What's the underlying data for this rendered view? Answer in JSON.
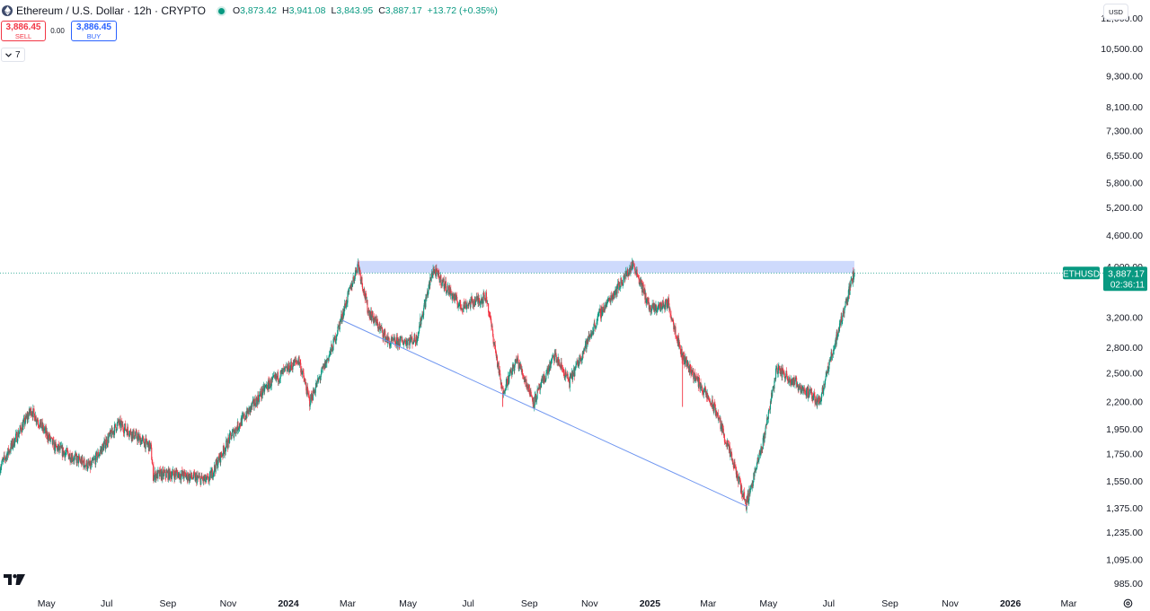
{
  "header": {
    "symbol_title": "Ethereum / U.S. Dollar · 12h · CRYPTO",
    "open_key": "O",
    "open": "3,873.42",
    "high_key": "H",
    "high": "3,941.08",
    "low_key": "L",
    "low": "3,843.95",
    "close_key": "C",
    "close": "3,887.17",
    "change": "+13.72 (+0.35%)"
  },
  "trade": {
    "sell_price": "3,886.45",
    "sell_label": "SELL",
    "spread": "0.00",
    "buy_price": "3,886.45",
    "buy_label": "BUY"
  },
  "indicators": {
    "toggle_label": "7"
  },
  "currency_label": "USD",
  "colors": {
    "up": "#089981",
    "down": "#f23645",
    "accent": "#2962ff",
    "box_fill": "#c6d3fb",
    "trendline": "#6e95f0"
  },
  "icons": {
    "symbol": "ethereum-icon",
    "logo": "tradingview-logo-icon",
    "settings": "settings-icon",
    "chevron": "chevron-down-icon"
  },
  "chart_data": {
    "type": "candlestick",
    "interval": "12h",
    "y_scale": "log",
    "ylim": [
      940,
      13000
    ],
    "x_start": "2023-03-15",
    "x_end": "2026-04-05",
    "price_ticks": [
      "12,000.00",
      "10,500.00",
      "9,300.00",
      "8,100.00",
      "7,300.00",
      "6,550.00",
      "5,800.00",
      "5,200.00",
      "4,600.00",
      "4,000.00",
      "3,200.00",
      "2,800.00",
      "2,500.00",
      "2,200.00",
      "1,950.00",
      "1,750.00",
      "1,550.00",
      "1,375.00",
      "1,235.00",
      "1,095.00",
      "985.00"
    ],
    "time_ticks": [
      {
        "label": "Mar",
        "date": "2023-03-01",
        "bold": false
      },
      {
        "label": "May",
        "date": "2023-05-01",
        "bold": false
      },
      {
        "label": "Jul",
        "date": "2023-07-01",
        "bold": false
      },
      {
        "label": "Sep",
        "date": "2023-09-01",
        "bold": false
      },
      {
        "label": "Nov",
        "date": "2023-11-01",
        "bold": false
      },
      {
        "label": "2024",
        "date": "2024-01-01",
        "bold": true
      },
      {
        "label": "Mar",
        "date": "2024-03-01",
        "bold": false
      },
      {
        "label": "May",
        "date": "2024-05-01",
        "bold": false
      },
      {
        "label": "Jul",
        "date": "2024-07-01",
        "bold": false
      },
      {
        "label": "Sep",
        "date": "2024-09-01",
        "bold": false
      },
      {
        "label": "Nov",
        "date": "2024-11-01",
        "bold": false
      },
      {
        "label": "2025",
        "date": "2025-01-01",
        "bold": true
      },
      {
        "label": "Mar",
        "date": "2025-03-01",
        "bold": false
      },
      {
        "label": "May",
        "date": "2025-05-01",
        "bold": false
      },
      {
        "label": "Jul",
        "date": "2025-07-01",
        "bold": false
      },
      {
        "label": "Sep",
        "date": "2025-09-01",
        "bold": false
      },
      {
        "label": "Nov",
        "date": "2025-11-01",
        "bold": false
      },
      {
        "label": "2026",
        "date": "2026-01-01",
        "bold": true
      },
      {
        "label": "Mar",
        "date": "2026-03-01",
        "bold": false
      }
    ],
    "price_path": [
      [
        "2023-03-15",
        1640
      ],
      [
        "2023-04-16",
        2120
      ],
      [
        "2023-05-10",
        1800
      ],
      [
        "2023-06-15",
        1650
      ],
      [
        "2023-07-13",
        2000
      ],
      [
        "2023-08-15",
        1800
      ],
      [
        "2023-08-18",
        1590
      ],
      [
        "2023-09-10",
        1600
      ],
      [
        "2023-10-12",
        1550
      ],
      [
        "2023-11-05",
        1900
      ],
      [
        "2023-12-10",
        2350
      ],
      [
        "2024-01-12",
        2650
      ],
      [
        "2024-01-23",
        2200
      ],
      [
        "2024-02-15",
        2800
      ],
      [
        "2024-03-12",
        4050
      ],
      [
        "2024-03-22",
        3300
      ],
      [
        "2024-04-13",
        2850
      ],
      [
        "2024-05-10",
        2900
      ],
      [
        "2024-05-27",
        3950
      ],
      [
        "2024-06-24",
        3350
      ],
      [
        "2024-07-20",
        3500
      ],
      [
        "2024-08-05",
        2300
      ],
      [
        "2024-08-20",
        2650
      ],
      [
        "2024-09-06",
        2200
      ],
      [
        "2024-09-27",
        2700
      ],
      [
        "2024-10-12",
        2400
      ],
      [
        "2024-11-12",
        3250
      ],
      [
        "2024-12-16",
        4050
      ],
      [
        "2025-01-02",
        3300
      ],
      [
        "2025-01-20",
        3400
      ],
      [
        "2025-02-03",
        2700
      ],
      [
        "2025-03-10",
        2100
      ],
      [
        "2025-04-09",
        1400
      ],
      [
        "2025-04-25",
        1800
      ],
      [
        "2025-05-10",
        2550
      ],
      [
        "2025-06-22",
        2200
      ],
      [
        "2025-07-10",
        2950
      ],
      [
        "2025-07-27",
        3887
      ]
    ],
    "spikes": [
      {
        "date": "2023-08-17",
        "low": 1550
      },
      {
        "date": "2024-08-05",
        "low": 2150
      },
      {
        "date": "2025-02-03",
        "low": 2150
      },
      {
        "date": "2025-04-09",
        "low": 1385
      }
    ],
    "resistance_zone": {
      "start": "2024-03-10",
      "end": "2025-07-27",
      "low": 3887,
      "high": 4100
    },
    "trendline": {
      "start": [
        "2024-02-25",
        3150
      ],
      "end": [
        "2025-04-09",
        1385
      ]
    },
    "last_price": {
      "symbol": "ETHUSD",
      "price": "3,887.17",
      "countdown": "02:36:11",
      "value": 3887.17
    }
  }
}
